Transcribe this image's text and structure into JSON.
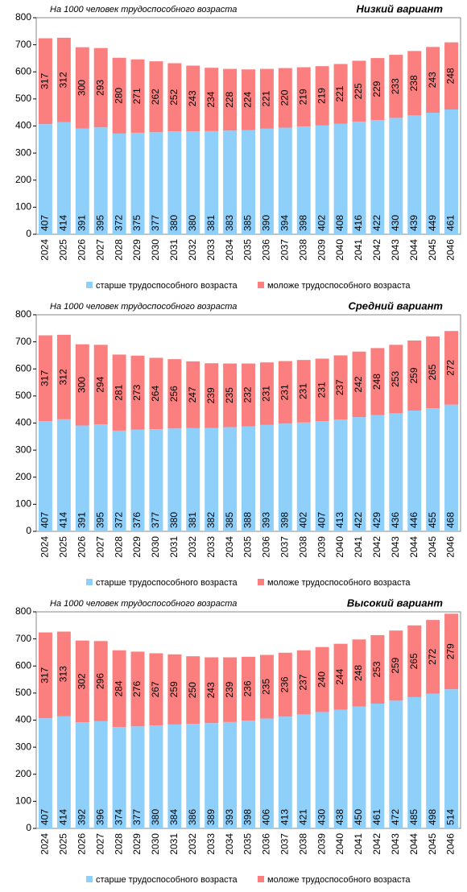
{
  "chart_data": [
    {
      "type": "bar",
      "stacked": true,
      "subtitle": "На 1000 человек трудоспособного возраста",
      "title": "Низкий вариант",
      "categories": [
        "2024",
        "2025",
        "2026",
        "2027",
        "2028",
        "2029",
        "2030",
        "2031",
        "2032",
        "2033",
        "2034",
        "2035",
        "2036",
        "2037",
        "2038",
        "2039",
        "2040",
        "2041",
        "2042",
        "2043",
        "2044",
        "2045",
        "2046"
      ],
      "series": [
        {
          "name": "старше трудоспособного возраста",
          "color": "#8fd0fb",
          "values": [
            407,
            414,
            391,
            395,
            372,
            375,
            377,
            380,
            380,
            381,
            383,
            385,
            390,
            394,
            398,
            402,
            408,
            416,
            422,
            430,
            439,
            449,
            461
          ]
        },
        {
          "name": "моложе трудоспособного возраста",
          "color": "#fb7f7f",
          "values": [
            317,
            312,
            300,
            293,
            280,
            271,
            262,
            252,
            243,
            234,
            228,
            224,
            221,
            220,
            219,
            219,
            221,
            225,
            229,
            233,
            238,
            243,
            248
          ]
        }
      ],
      "ylim": [
        0,
        800
      ],
      "yticks": [
        0,
        100,
        200,
        300,
        400,
        500,
        600,
        700,
        800
      ],
      "legend": "bottom"
    },
    {
      "type": "bar",
      "stacked": true,
      "subtitle": "На 1000 человек трудоспособного возраста",
      "title": "Средний вариант",
      "categories": [
        "2024",
        "2025",
        "2026",
        "2027",
        "2028",
        "2029",
        "2030",
        "2031",
        "2032",
        "2033",
        "2034",
        "2035",
        "2036",
        "2037",
        "2038",
        "2039",
        "2040",
        "2041",
        "2042",
        "2043",
        "2044",
        "2045",
        "2046"
      ],
      "series": [
        {
          "name": "старше трудоспособного возраста",
          "color": "#8fd0fb",
          "values": [
            407,
            414,
            391,
            395,
            372,
            376,
            377,
            380,
            381,
            382,
            385,
            388,
            393,
            398,
            402,
            407,
            413,
            422,
            429,
            436,
            446,
            455,
            468
          ]
        },
        {
          "name": "моложе трудоспособного возраста",
          "color": "#fb7f7f",
          "values": [
            317,
            312,
            300,
            294,
            281,
            273,
            264,
            256,
            247,
            239,
            235,
            232,
            231,
            231,
            231,
            231,
            237,
            242,
            248,
            253,
            259,
            265,
            272
          ]
        }
      ],
      "ylim": [
        0,
        800
      ],
      "yticks": [
        0,
        100,
        200,
        300,
        400,
        500,
        600,
        700,
        800
      ],
      "legend": "bottom"
    },
    {
      "type": "bar",
      "stacked": true,
      "subtitle": "На 1000 человек трудоспособного возраста",
      "title": "Высокий вариант",
      "categories": [
        "2024",
        "2025",
        "2026",
        "2027",
        "2028",
        "2029",
        "2030",
        "2031",
        "2032",
        "2033",
        "2034",
        "2035",
        "2036",
        "2037",
        "2038",
        "2039",
        "2040",
        "2041",
        "2042",
        "2043",
        "2044",
        "2045",
        "2046"
      ],
      "series": [
        {
          "name": "старше трудоспособного возраста",
          "color": "#8fd0fb",
          "values": [
            407,
            414,
            392,
            396,
            374,
            377,
            380,
            384,
            386,
            389,
            393,
            398,
            406,
            413,
            421,
            430,
            438,
            450,
            461,
            472,
            485,
            498,
            514
          ]
        },
        {
          "name": "моложе трудоспособного возраста",
          "color": "#fb7f7f",
          "values": [
            317,
            313,
            302,
            296,
            284,
            276,
            267,
            259,
            250,
            243,
            239,
            236,
            235,
            236,
            237,
            240,
            244,
            248,
            253,
            259,
            265,
            272,
            279
          ]
        }
      ],
      "ylim": [
        0,
        800
      ],
      "yticks": [
        0,
        100,
        200,
        300,
        400,
        500,
        600,
        700,
        800
      ],
      "legend": "bottom"
    }
  ]
}
